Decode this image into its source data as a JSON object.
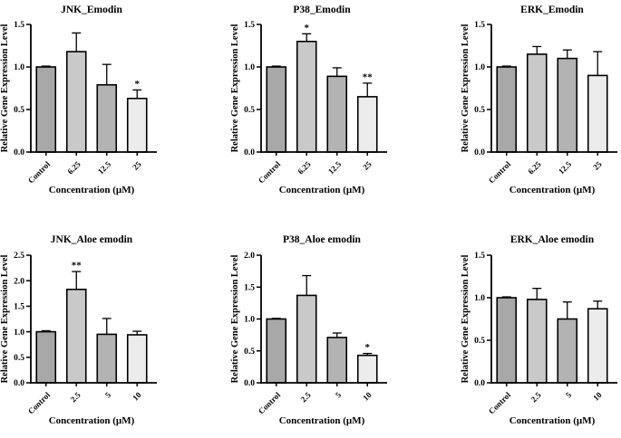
{
  "chart_data": [
    {
      "type": "bar",
      "title": "JNK_Emodin",
      "xlabel": "Concentration (µM)",
      "ylabel": "Relative Gene Expression Level",
      "categories": [
        "Control",
        "6.25",
        "12.5",
        "25"
      ],
      "values": [
        1.0,
        1.18,
        0.79,
        0.63
      ],
      "errors": [
        0.01,
        0.22,
        0.24,
        0.1
      ],
      "significance": [
        "",
        "",
        "",
        "*"
      ],
      "ylim": [
        0,
        1.5
      ],
      "yticks": [
        0.0,
        0.5,
        1.0,
        1.5
      ],
      "bar_colors": [
        "#a8a8a8",
        "#c9c9c9",
        "#b3b3b3",
        "#ececec"
      ],
      "bar_outline": "#000000",
      "grid": false,
      "legend": false
    },
    {
      "type": "bar",
      "title": "P38_Emodin",
      "xlabel": "Concentration (µM)",
      "ylabel": "Relative Gene Expression Level",
      "categories": [
        "Control",
        "6.25",
        "12.5",
        "25"
      ],
      "values": [
        1.0,
        1.3,
        0.89,
        0.65
      ],
      "errors": [
        0.01,
        0.09,
        0.1,
        0.16
      ],
      "significance": [
        "",
        "*",
        "",
        "**"
      ],
      "ylim": [
        0,
        1.5
      ],
      "yticks": [
        0.0,
        0.5,
        1.0,
        1.5
      ],
      "bar_colors": [
        "#a8a8a8",
        "#c9c9c9",
        "#b3b3b3",
        "#ececec"
      ],
      "bar_outline": "#000000",
      "grid": false,
      "legend": false
    },
    {
      "type": "bar",
      "title": "ERK_Emodin",
      "xlabel": "Concentration (µM)",
      "ylabel": "Relative Gene Expression Level",
      "categories": [
        "Control",
        "6.25",
        "12.5",
        "25"
      ],
      "values": [
        1.0,
        1.15,
        1.1,
        0.9
      ],
      "errors": [
        0.01,
        0.09,
        0.1,
        0.28
      ],
      "significance": [
        "",
        "",
        "",
        ""
      ],
      "ylim": [
        0,
        1.5
      ],
      "yticks": [
        0.0,
        0.5,
        1.0,
        1.5
      ],
      "bar_colors": [
        "#a8a8a8",
        "#c9c9c9",
        "#b3b3b3",
        "#ececec"
      ],
      "bar_outline": "#000000",
      "grid": false,
      "legend": false
    },
    {
      "type": "bar",
      "title": "JNK_Aloe emodin",
      "xlabel": "Concentration (µM)",
      "ylabel": "Relative Gene Expression Level",
      "categories": [
        "Control",
        "2.5",
        "5",
        "10"
      ],
      "values": [
        1.0,
        1.83,
        0.95,
        0.94
      ],
      "errors": [
        0.02,
        0.35,
        0.31,
        0.07
      ],
      "significance": [
        "",
        "**",
        "",
        ""
      ],
      "ylim": [
        0,
        2.5
      ],
      "yticks": [
        0.0,
        0.5,
        1.0,
        1.5,
        2.0,
        2.5
      ],
      "bar_colors": [
        "#a8a8a8",
        "#c9c9c9",
        "#b3b3b3",
        "#ececec"
      ],
      "bar_outline": "#000000",
      "grid": false,
      "legend": false
    },
    {
      "type": "bar",
      "title": "P38_Aloe emodin",
      "xlabel": "Concentration (µM)",
      "ylabel": "Relative Gene Expression Level",
      "categories": [
        "Control",
        "2.5",
        "5",
        "10"
      ],
      "values": [
        1.0,
        1.37,
        0.71,
        0.43
      ],
      "errors": [
        0.01,
        0.31,
        0.07,
        0.03
      ],
      "significance": [
        "",
        "",
        "",
        "*"
      ],
      "ylim": [
        0,
        2.0
      ],
      "yticks": [
        0.0,
        0.5,
        1.0,
        1.5,
        2.0
      ],
      "bar_colors": [
        "#a8a8a8",
        "#c9c9c9",
        "#b3b3b3",
        "#ececec"
      ],
      "bar_outline": "#000000",
      "grid": false,
      "legend": false
    },
    {
      "type": "bar",
      "title": "ERK_Aloe emodin",
      "xlabel": "Concentration (µM)",
      "ylabel": "Relative Gene Expression Level",
      "categories": [
        "Control",
        "2.5",
        "5",
        "10"
      ],
      "values": [
        1.0,
        0.98,
        0.75,
        0.87
      ],
      "errors": [
        0.01,
        0.13,
        0.2,
        0.09
      ],
      "significance": [
        "",
        "",
        "",
        ""
      ],
      "ylim": [
        0,
        1.5
      ],
      "yticks": [
        0.0,
        0.5,
        1.0,
        1.5
      ],
      "bar_colors": [
        "#a8a8a8",
        "#c9c9c9",
        "#b3b3b3",
        "#ececec"
      ],
      "bar_outline": "#000000",
      "grid": false,
      "legend": false
    }
  ]
}
